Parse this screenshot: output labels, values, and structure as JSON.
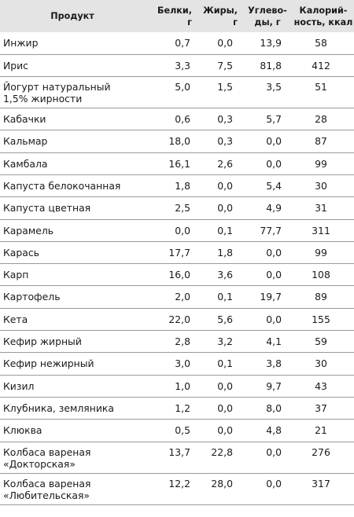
{
  "table": {
    "headers": {
      "product": "Продукт",
      "protein": "Белки, г",
      "fat": "Жиры, г",
      "carbs": "Углево-\nды, г",
      "calories": "Калорий-\nность, ккал"
    },
    "rows": [
      {
        "name": "Инжир",
        "protein": "0,7",
        "fat": "0,0",
        "carbs": "13,9",
        "calories": "58"
      },
      {
        "name": "Ирис",
        "protein": "3,3",
        "fat": "7,5",
        "carbs": "81,8",
        "calories": "412"
      },
      {
        "name": "Йогурт натуральный\n1,5% жирности",
        "protein": "5,0",
        "fat": "1,5",
        "carbs": "3,5",
        "calories": "51"
      },
      {
        "name": "Кабачки",
        "protein": "0,6",
        "fat": "0,3",
        "carbs": "5,7",
        "calories": "28"
      },
      {
        "name": "Кальмар",
        "protein": "18,0",
        "fat": "0,3",
        "carbs": "0,0",
        "calories": "87"
      },
      {
        "name": "Камбала",
        "protein": "16,1",
        "fat": "2,6",
        "carbs": "0,0",
        "calories": "99"
      },
      {
        "name": "Капуста белокочанная",
        "protein": "1,8",
        "fat": "0,0",
        "carbs": "5,4",
        "calories": "30"
      },
      {
        "name": "Капуста цветная",
        "protein": "2,5",
        "fat": "0,0",
        "carbs": "4,9",
        "calories": "31"
      },
      {
        "name": "Карамель",
        "protein": "0,0",
        "fat": "0,1",
        "carbs": "77,7",
        "calories": "311"
      },
      {
        "name": "Карась",
        "protein": "17,7",
        "fat": "1,8",
        "carbs": "0,0",
        "calories": "99"
      },
      {
        "name": "Карп",
        "protein": "16,0",
        "fat": "3,6",
        "carbs": "0,0",
        "calories": "108"
      },
      {
        "name": "Картофель",
        "protein": "2,0",
        "fat": "0,1",
        "carbs": "19,7",
        "calories": "89"
      },
      {
        "name": "Кета",
        "protein": "22,0",
        "fat": "5,6",
        "carbs": "0,0",
        "calories": "155"
      },
      {
        "name": "Кефир жирный",
        "protein": "2,8",
        "fat": "3,2",
        "carbs": "4,1",
        "calories": "59"
      },
      {
        "name": "Кефир нежирный",
        "protein": "3,0",
        "fat": "0,1",
        "carbs": "3,8",
        "calories": "30"
      },
      {
        "name": "Кизил",
        "protein": "1,0",
        "fat": "0,0",
        "carbs": "9,7",
        "calories": "43"
      },
      {
        "name": "Клубника, земляника",
        "protein": "1,2",
        "fat": "0,0",
        "carbs": "8,0",
        "calories": "37"
      },
      {
        "name": "Клюква",
        "protein": "0,5",
        "fat": "0,0",
        "carbs": "4,8",
        "calories": "21"
      },
      {
        "name": "Колбаса вареная\n«Докторская»",
        "protein": "13,7",
        "fat": "22,8",
        "carbs": "0,0",
        "calories": "276"
      },
      {
        "name": "Колбаса вареная\n«Любительская»",
        "protein": "12,2",
        "fat": "28,0",
        "carbs": "0,0",
        "calories": "317"
      }
    ]
  }
}
